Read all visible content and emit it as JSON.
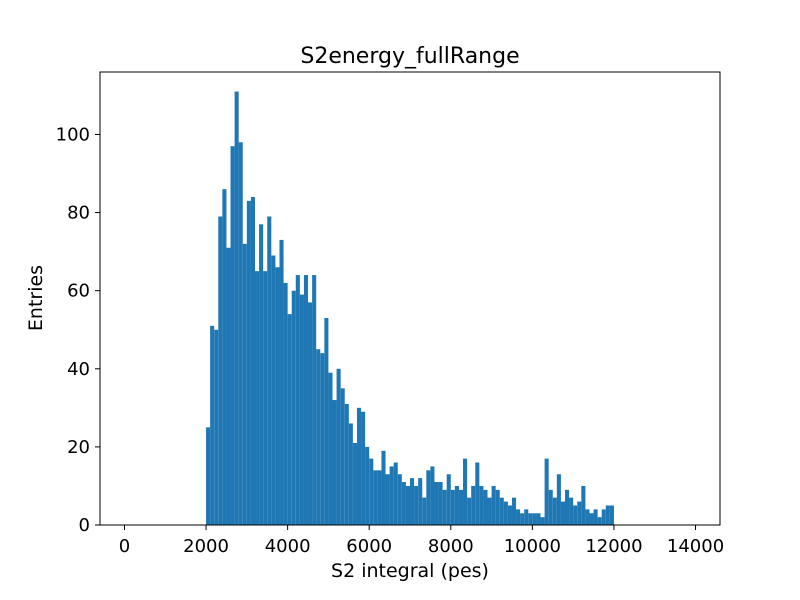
{
  "chart_data": {
    "type": "bar",
    "title": "S2energy_fullRange",
    "xlabel": "S2 integral (pes)",
    "ylabel": "Entries",
    "xlim": [
      -600,
      14600
    ],
    "ylim": [
      0,
      116
    ],
    "bin_width": 100,
    "bar_color": "#1f77b4",
    "grid": false,
    "x_ticks": [
      0,
      2000,
      4000,
      6000,
      8000,
      10000,
      12000,
      14000
    ],
    "y_ticks": [
      0,
      20,
      40,
      60,
      80,
      100
    ],
    "bins": [
      {
        "x": 2000,
        "y": 25
      },
      {
        "x": 2100,
        "y": 51
      },
      {
        "x": 2200,
        "y": 50
      },
      {
        "x": 2300,
        "y": 79
      },
      {
        "x": 2400,
        "y": 86
      },
      {
        "x": 2500,
        "y": 71
      },
      {
        "x": 2600,
        "y": 97
      },
      {
        "x": 2700,
        "y": 111
      },
      {
        "x": 2800,
        "y": 98
      },
      {
        "x": 2900,
        "y": 72
      },
      {
        "x": 3000,
        "y": 83
      },
      {
        "x": 3100,
        "y": 84
      },
      {
        "x": 3200,
        "y": 65
      },
      {
        "x": 3300,
        "y": 77
      },
      {
        "x": 3400,
        "y": 65
      },
      {
        "x": 3500,
        "y": 79
      },
      {
        "x": 3600,
        "y": 69
      },
      {
        "x": 3700,
        "y": 66
      },
      {
        "x": 3800,
        "y": 73
      },
      {
        "x": 3900,
        "y": 62
      },
      {
        "x": 4000,
        "y": 54
      },
      {
        "x": 4100,
        "y": 60
      },
      {
        "x": 4200,
        "y": 64
      },
      {
        "x": 4300,
        "y": 59
      },
      {
        "x": 4400,
        "y": 64
      },
      {
        "x": 4500,
        "y": 57
      },
      {
        "x": 4600,
        "y": 64
      },
      {
        "x": 4700,
        "y": 45
      },
      {
        "x": 4800,
        "y": 44
      },
      {
        "x": 4900,
        "y": 53
      },
      {
        "x": 5000,
        "y": 39
      },
      {
        "x": 5100,
        "y": 32
      },
      {
        "x": 5200,
        "y": 40
      },
      {
        "x": 5300,
        "y": 35
      },
      {
        "x": 5400,
        "y": 31
      },
      {
        "x": 5500,
        "y": 26
      },
      {
        "x": 5600,
        "y": 21
      },
      {
        "x": 5700,
        "y": 30
      },
      {
        "x": 5800,
        "y": 29
      },
      {
        "x": 5900,
        "y": 20
      },
      {
        "x": 6000,
        "y": 17
      },
      {
        "x": 6100,
        "y": 14
      },
      {
        "x": 6200,
        "y": 14
      },
      {
        "x": 6300,
        "y": 19
      },
      {
        "x": 6400,
        "y": 13
      },
      {
        "x": 6500,
        "y": 15
      },
      {
        "x": 6600,
        "y": 16
      },
      {
        "x": 6700,
        "y": 13
      },
      {
        "x": 6800,
        "y": 11
      },
      {
        "x": 6900,
        "y": 10
      },
      {
        "x": 7000,
        "y": 12
      },
      {
        "x": 7100,
        "y": 10
      },
      {
        "x": 7200,
        "y": 12
      },
      {
        "x": 7300,
        "y": 7
      },
      {
        "x": 7400,
        "y": 14
      },
      {
        "x": 7500,
        "y": 15
      },
      {
        "x": 7600,
        "y": 11
      },
      {
        "x": 7700,
        "y": 11
      },
      {
        "x": 7800,
        "y": 9
      },
      {
        "x": 7900,
        "y": 13
      },
      {
        "x": 8000,
        "y": 9
      },
      {
        "x": 8100,
        "y": 10
      },
      {
        "x": 8200,
        "y": 9
      },
      {
        "x": 8300,
        "y": 17
      },
      {
        "x": 8400,
        "y": 7
      },
      {
        "x": 8500,
        "y": 10
      },
      {
        "x": 8600,
        "y": 16
      },
      {
        "x": 8700,
        "y": 10
      },
      {
        "x": 8800,
        "y": 9
      },
      {
        "x": 8900,
        "y": 7
      },
      {
        "x": 9000,
        "y": 10
      },
      {
        "x": 9100,
        "y": 9
      },
      {
        "x": 9200,
        "y": 7
      },
      {
        "x": 9300,
        "y": 6
      },
      {
        "x": 9400,
        "y": 5
      },
      {
        "x": 9500,
        "y": 7
      },
      {
        "x": 9600,
        "y": 4
      },
      {
        "x": 9700,
        "y": 3
      },
      {
        "x": 9800,
        "y": 4
      },
      {
        "x": 9900,
        "y": 3
      },
      {
        "x": 10000,
        "y": 3
      },
      {
        "x": 10100,
        "y": 3
      },
      {
        "x": 10200,
        "y": 2
      },
      {
        "x": 10300,
        "y": 17
      },
      {
        "x": 10400,
        "y": 9
      },
      {
        "x": 10500,
        "y": 7
      },
      {
        "x": 10600,
        "y": 13
      },
      {
        "x": 10700,
        "y": 6
      },
      {
        "x": 10800,
        "y": 9
      },
      {
        "x": 10900,
        "y": 7
      },
      {
        "x": 11000,
        "y": 5
      },
      {
        "x": 11100,
        "y": 6
      },
      {
        "x": 11200,
        "y": 10
      },
      {
        "x": 11300,
        "y": 4
      },
      {
        "x": 11400,
        "y": 3
      },
      {
        "x": 11500,
        "y": 4
      },
      {
        "x": 11600,
        "y": 2
      },
      {
        "x": 11700,
        "y": 4
      },
      {
        "x": 11800,
        "y": 5
      },
      {
        "x": 11900,
        "y": 5
      }
    ]
  }
}
